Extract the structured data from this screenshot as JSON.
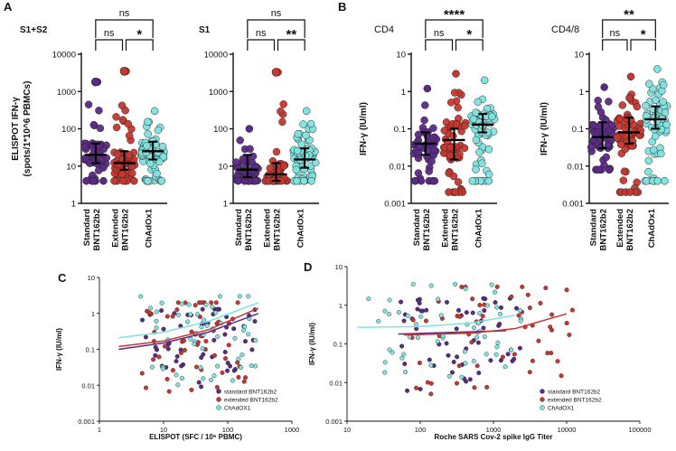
{
  "figure": {
    "panel_letters": [
      "A",
      "B",
      "C",
      "D"
    ],
    "colors": {
      "standard": "#5b2a86",
      "extended": "#c7372f",
      "chadox": "#7fe3e0",
      "outline": "#222222"
    }
  },
  "chart_data": [
    {
      "id": "A1",
      "type": "scatter",
      "panel": "A",
      "subtitle": "S1+S2",
      "ylabel_lines": [
        "ELISPOT IFN-γ",
        "(spots/1*10^6 PBMCs)"
      ],
      "yscale": "log",
      "ylim": [
        1,
        10000
      ],
      "y_ticks": [
        1,
        10,
        100,
        1000,
        10000
      ],
      "y_tick_labels": [
        "1",
        "10",
        "100",
        "1000",
        "10000"
      ],
      "categories": [
        [
          "Standard",
          "BNT162b2"
        ],
        [
          "Extended",
          "BNT162b2"
        ],
        [
          "ChAdOx1"
        ]
      ],
      "medians": [
        20,
        12,
        25
      ],
      "iqr": [
        [
          12,
          40
        ],
        [
          8,
          25
        ],
        [
          15,
          45
        ]
      ],
      "ranges": [
        [
          4,
          1800
        ],
        [
          4,
          3500
        ],
        [
          4,
          300
        ]
      ],
      "highlight_points": [
        [
          0,
          1800
        ],
        [
          1,
          3500
        ]
      ],
      "comparisons": [
        {
          "from": 0,
          "to": 1,
          "label": "ns"
        },
        {
          "from": 1,
          "to": 2,
          "label": "*"
        },
        {
          "from": 0,
          "to": 2,
          "label": "ns"
        }
      ]
    },
    {
      "id": "A2",
      "type": "scatter",
      "panel": "A",
      "subtitle": "S1",
      "ylabel_lines": [],
      "yscale": "log",
      "ylim": [
        1,
        10000
      ],
      "y_ticks": [
        1,
        10,
        100,
        1000,
        10000
      ],
      "y_tick_labels": [
        "1",
        "10",
        "100",
        "1000",
        "10000"
      ],
      "categories": [
        [
          "Standard",
          "BNT162b2"
        ],
        [
          "Extended",
          "BNT162b2"
        ],
        [
          "ChAdOx1"
        ]
      ],
      "medians": [
        8,
        6,
        15
      ],
      "iqr": [
        [
          5,
          20
        ],
        [
          4,
          12
        ],
        [
          9,
          30
        ]
      ],
      "ranges": [
        [
          4,
          100
        ],
        [
          4,
          3300
        ],
        [
          4,
          300
        ]
      ],
      "highlight_points": [
        [
          1,
          3300
        ]
      ],
      "comparisons": [
        {
          "from": 0,
          "to": 1,
          "label": "ns"
        },
        {
          "from": 1,
          "to": 2,
          "label": "**"
        },
        {
          "from": 0,
          "to": 2,
          "label": "ns"
        }
      ]
    },
    {
      "id": "B1",
      "type": "scatter",
      "panel": "B",
      "subtitle": "CD4",
      "ylabel_lines": [
        "IFN-γ (IU/ml)"
      ],
      "yscale": "log",
      "ylim": [
        0.001,
        10
      ],
      "y_ticks": [
        0.001,
        0.01,
        0.1,
        1,
        10
      ],
      "y_tick_labels": [
        "0.001",
        "0.01",
        "0.1",
        "1",
        "10"
      ],
      "categories": [
        [
          "Standard",
          "BNT162b2"
        ],
        [
          "Extended",
          "BNT162b2"
        ],
        [
          "ChAdOx1"
        ]
      ],
      "medians": [
        0.04,
        0.05,
        0.13
      ],
      "iqr": [
        [
          0.02,
          0.08
        ],
        [
          0.015,
          0.1
        ],
        [
          0.08,
          0.25
        ]
      ],
      "ranges": [
        [
          0.004,
          1.2
        ],
        [
          0.002,
          3
        ],
        [
          0.004,
          2
        ]
      ],
      "highlight_points": [],
      "comparisons": [
        {
          "from": 0,
          "to": 1,
          "label": "ns"
        },
        {
          "from": 1,
          "to": 2,
          "label": "*"
        },
        {
          "from": 0,
          "to": 2,
          "label": "****"
        }
      ]
    },
    {
      "id": "B2",
      "type": "scatter",
      "panel": "B",
      "subtitle": "CD4/8",
      "ylabel_lines": [
        "IFN-γ (IU/ml)"
      ],
      "yscale": "log",
      "ylim": [
        0.001,
        10
      ],
      "y_ticks": [
        0.001,
        0.01,
        0.1,
        1,
        10
      ],
      "y_tick_labels": [
        "0.001",
        "0.01",
        "0.1",
        "1",
        "10"
      ],
      "categories": [
        [
          "Standard",
          "BNT162b2"
        ],
        [
          "Extended",
          "BNT162b2"
        ],
        [
          "ChAdOx1"
        ]
      ],
      "medians": [
        0.06,
        0.08,
        0.18
      ],
      "iqr": [
        [
          0.03,
          0.15
        ],
        [
          0.04,
          0.2
        ],
        [
          0.1,
          0.4
        ]
      ],
      "ranges": [
        [
          0.008,
          1.3
        ],
        [
          0.002,
          2.5
        ],
        [
          0.004,
          4
        ]
      ],
      "highlight_points": [],
      "comparisons": [
        {
          "from": 0,
          "to": 1,
          "label": "ns"
        },
        {
          "from": 1,
          "to": 2,
          "label": "*"
        },
        {
          "from": 0,
          "to": 2,
          "label": "**"
        }
      ]
    },
    {
      "id": "C",
      "type": "scatter",
      "panel": "C",
      "xlabel": "ELISPOT (SFC / 10⁶ PBMC)",
      "ylabel": "IFN-γ (IU/ml)",
      "xscale": "log",
      "xlim": [
        1,
        1000
      ],
      "x_ticks": [
        1,
        10,
        100,
        1000
      ],
      "x_tick_labels": [
        "1",
        "10",
        "100",
        "1000"
      ],
      "yscale": "log",
      "ylim": [
        0.001,
        10
      ],
      "y_ticks": [
        0.001,
        0.01,
        0.1,
        1,
        10
      ],
      "y_tick_labels": [
        "0.001",
        "0.01",
        "0.1",
        "1",
        "10"
      ],
      "legend": [
        "standard BNT162b2",
        "extended BNT162b2",
        "ChAdOX1"
      ],
      "legend_position": "bottom-right",
      "series": [
        {
          "name": "standard BNT162b2",
          "x_range": [
            4,
            300
          ],
          "y_range": [
            0.003,
            1.3
          ],
          "fit": [
            [
              2,
              0.1
            ],
            [
              10,
              0.15
            ],
            [
              50,
              0.3
            ],
            [
              300,
              1.0
            ]
          ]
        },
        {
          "name": "extended BNT162b2",
          "x_range": [
            4,
            200
          ],
          "y_range": [
            0.002,
            2
          ],
          "fit": [
            [
              2,
              0.12
            ],
            [
              10,
              0.17
            ],
            [
              50,
              0.35
            ],
            [
              300,
              1.4
            ]
          ]
        },
        {
          "name": "ChAdOX1",
          "x_range": [
            4,
            300
          ],
          "y_range": [
            0.003,
            3
          ],
          "fit": [
            [
              2,
              0.21
            ],
            [
              10,
              0.3
            ],
            [
              50,
              0.6
            ],
            [
              300,
              2.0
            ]
          ]
        }
      ]
    },
    {
      "id": "D",
      "type": "scatter",
      "panel": "D",
      "xlabel": "Roche SARS Cov-2 spike IgG Titer",
      "ylabel": "IFN-γ (IU/ml)",
      "xscale": "log",
      "xlim": [
        10,
        100000
      ],
      "x_ticks": [
        10,
        100,
        1000,
        10000,
        100000
      ],
      "x_tick_labels": [
        "10",
        "100",
        "1000",
        "10000",
        "100000"
      ],
      "yscale": "log",
      "ylim": [
        0.001,
        10
      ],
      "y_ticks": [
        0.001,
        0.01,
        0.1,
        1,
        10
      ],
      "y_tick_labels": [
        "0.001",
        "0.01",
        "0.1",
        "1",
        "10"
      ],
      "legend": [
        "standard BNT162b2",
        "extended BNT162b2",
        "ChAdOX1"
      ],
      "legend_position": "bottom-right",
      "series": [
        {
          "name": "standard BNT162b2",
          "x_range": [
            50,
            2500
          ],
          "y_range": [
            0.003,
            1.5
          ],
          "fit": [
            [
              50,
              0.18
            ],
            [
              300,
              0.2
            ],
            [
              1500,
              0.22
            ]
          ]
        },
        {
          "name": "extended BNT162b2",
          "x_range": [
            60,
            12000
          ],
          "y_range": [
            0.002,
            3
          ],
          "fit": [
            [
              60,
              0.17
            ],
            [
              500,
              0.19
            ],
            [
              2000,
              0.25
            ],
            [
              10000,
              0.6
            ]
          ]
        },
        {
          "name": "ChAdOX1",
          "x_range": [
            14,
            2500
          ],
          "y_range": [
            0.003,
            3.5
          ],
          "fit": [
            [
              14,
              0.27
            ],
            [
              100,
              0.28
            ],
            [
              500,
              0.35
            ],
            [
              2000,
              0.55
            ]
          ]
        }
      ]
    }
  ]
}
